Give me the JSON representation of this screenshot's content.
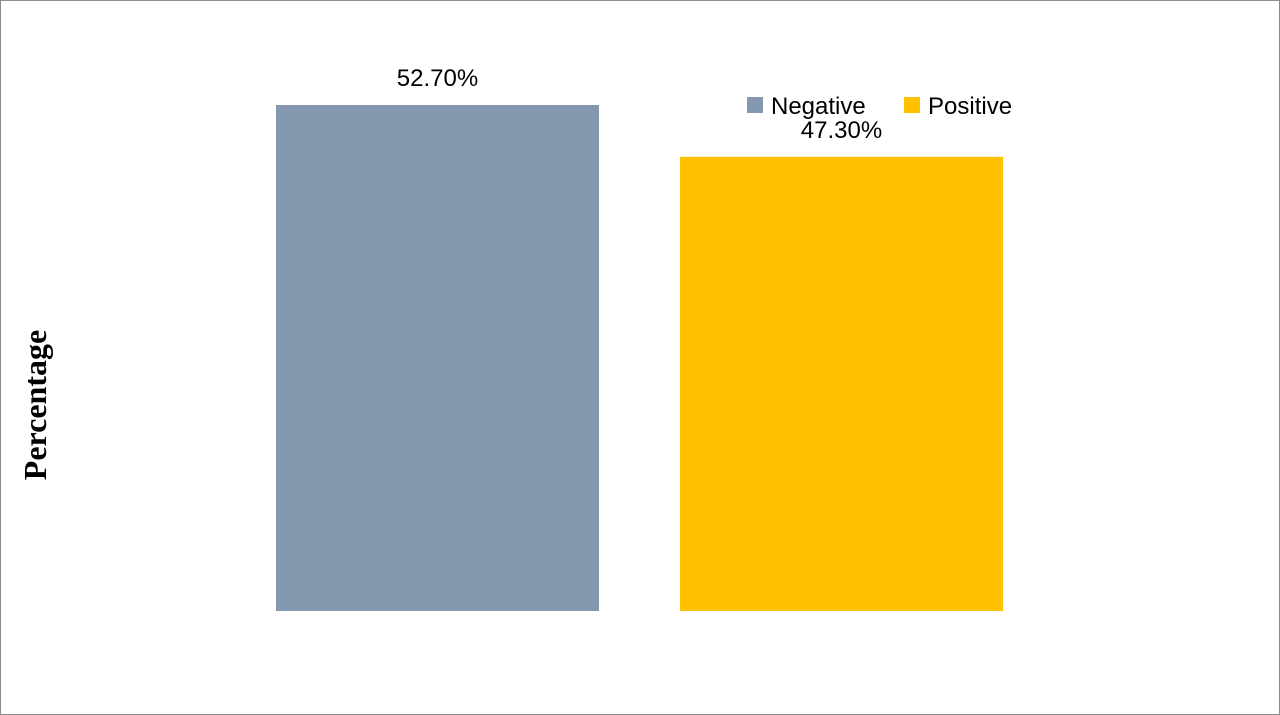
{
  "chart_data": {
    "type": "bar",
    "categories": [
      "Negative",
      "Positive"
    ],
    "values": [
      52.7,
      47.3
    ],
    "data_labels": [
      "52.70%",
      "47.30%"
    ],
    "colors": [
      "#8498b0",
      "#ffc000"
    ],
    "title": "",
    "xlabel": "",
    "ylabel": "Percentage",
    "ylim": [
      0,
      52.7
    ],
    "grid": false,
    "legend": {
      "placement": "top-right",
      "entries": [
        {
          "label": "Negative",
          "color": "#8498b0"
        },
        {
          "label": "Positive",
          "color": "#ffc000"
        }
      ]
    }
  }
}
